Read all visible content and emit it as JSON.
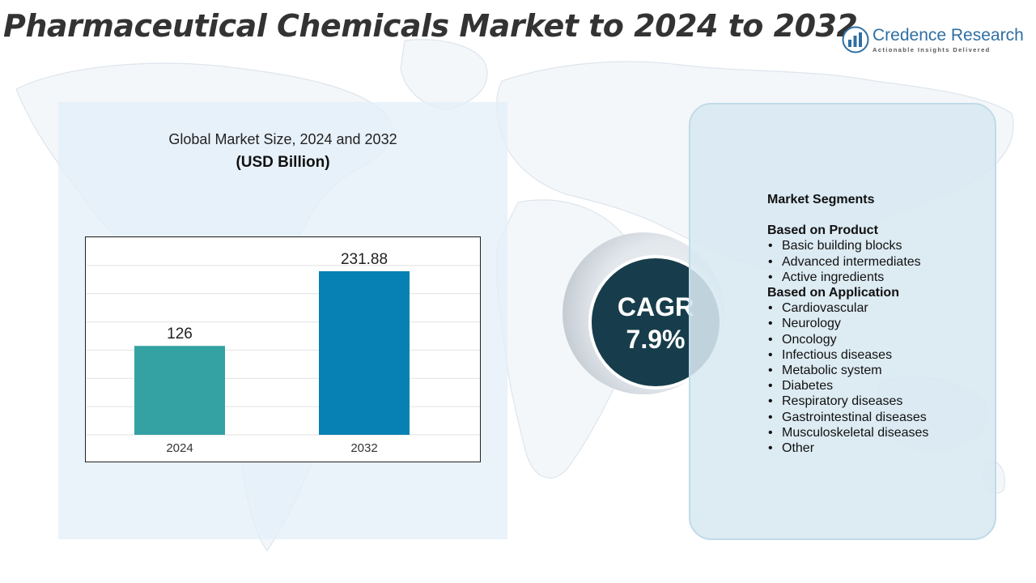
{
  "title": "Pharmaceutical Chemicals Market to 2024 to 2032",
  "logo": {
    "name": "Credence Research",
    "tagline": "Actionable Insights Delivered",
    "icon": "bar-chart-logo-icon"
  },
  "chart_data": {
    "type": "bar",
    "title": "Global Market Size, 2024 and 2032",
    "unit": "(USD Billion)",
    "categories": [
      "2024",
      "2032"
    ],
    "values": [
      126,
      231.88
    ],
    "data_labels": [
      "126",
      "231.88"
    ],
    "ylim": [
      0,
      280
    ],
    "grid": true,
    "colors": [
      "#34a2a2",
      "#0781b3"
    ]
  },
  "cagr": {
    "label": "CAGR",
    "value": "7.9%"
  },
  "segments": {
    "heading": "Market Segments",
    "groups": [
      {
        "title": "Based on Product",
        "items": [
          "Basic building blocks",
          "Advanced intermediates",
          "Active ingredients"
        ]
      },
      {
        "title": "Based on Application",
        "items": [
          "Cardiovascular",
          "Neurology",
          "Oncology",
          "Infectious diseases",
          "Metabolic system",
          "Diabetes",
          "Respiratory diseases",
          "Gastrointestinal diseases",
          "Musculoskeletal diseases",
          "Other"
        ]
      }
    ]
  },
  "colors": {
    "chart_panel": "#e3eff8",
    "segments_panel": "#d8e8f1",
    "cagr_circle": "#173d4c",
    "logo_blue": "#2f6fa3"
  }
}
